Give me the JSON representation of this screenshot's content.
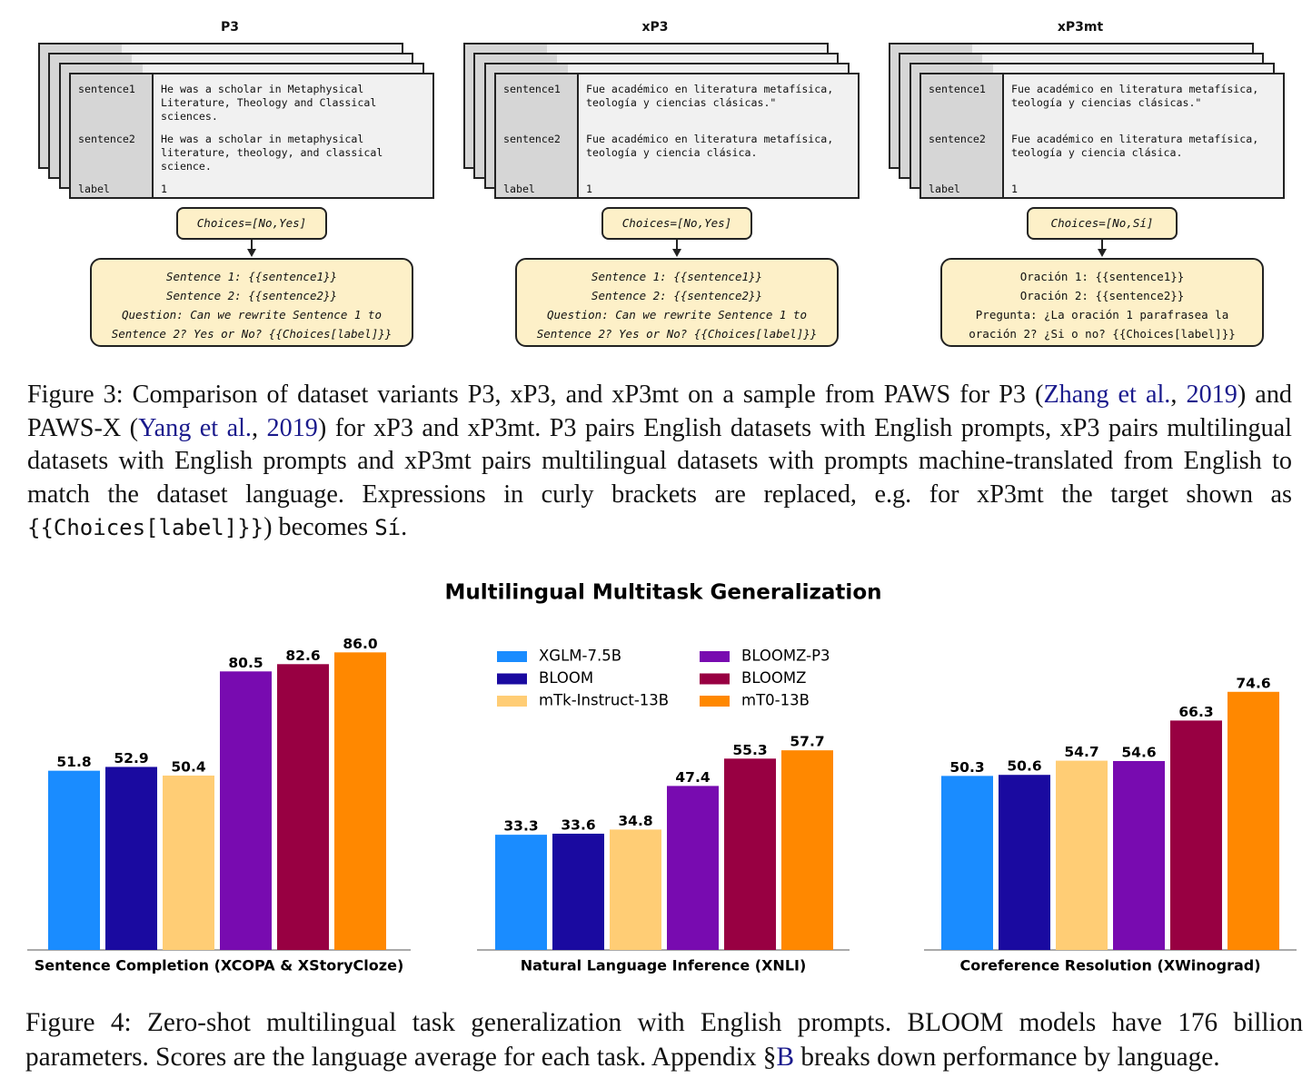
{
  "figure3": {
    "panels": [
      {
        "title": "P3",
        "fields": [
          {
            "key": "sentence1",
            "value": "He was a scholar in Metaphysical Literature, Theology and Classical sciences."
          },
          {
            "key": "sentence2",
            "value": "He was a scholar in metaphysical literature, theology, and classical science."
          },
          {
            "key": "label",
            "value": "1"
          }
        ],
        "choices": "Choices=[No,Yes]",
        "prompt": [
          "Sentence 1: {{sentence1}}",
          "Sentence 2: {{sentence2}}",
          "Question: Can we rewrite Sentence 1 to",
          "Sentence 2? Yes or No? {{Choices[label]}}"
        ]
      },
      {
        "title": "xP3",
        "fields": [
          {
            "key": "sentence1",
            "value": "Fue académico en literatura metafísica, teología y ciencias clásicas.\""
          },
          {
            "key": "sentence2",
            "value": "Fue académico en literatura metafísica, teología y ciencia clásica."
          },
          {
            "key": "label",
            "value": "1"
          }
        ],
        "choices": "Choices=[No,Yes]",
        "prompt": [
          "Sentence 1: {{sentence1}}",
          "Sentence 2: {{sentence2}}",
          "Question: Can we rewrite Sentence 1 to",
          "Sentence 2? Yes or No? {{Choices[label]}}"
        ]
      },
      {
        "title": "xP3mt",
        "fields": [
          {
            "key": "sentence1",
            "value": "Fue académico en literatura metafísica, teología y ciencias clásicas.\""
          },
          {
            "key": "sentence2",
            "value": "Fue académico en literatura metafísica, teología y ciencia clásica."
          },
          {
            "key": "label",
            "value": "1"
          }
        ],
        "choices": "Choices=[No,Sí]",
        "prompt": [
          "Oración 1: {{sentence1}}",
          "Oración 2: {{sentence2}}",
          "Pregunta: ¿La oración 1 parafrasea la",
          "oración 2? ¿Si o no? {{Choices[label]}}"
        ]
      }
    ],
    "caption": [
      "Figure 3: Comparison of dataset variants P3, xP3, and xP3mt on a sample from PAWS for P3 (",
      "Zhang et al.",
      ", ",
      "2019",
      ") and PAWS-X (",
      "Yang et al.",
      ", ",
      "2019",
      ") for xP3 and xP3mt. P3 pairs English datasets with English prompts, xP3 pairs multilingual datasets with English prompts and xP3mt pairs multilingual datasets with prompts machine-translated from English to match the dataset language. Expressions in curly brackets are replaced, e.g. for xP3mt the target shown as ",
      "{{Choices[label]}}",
      ") becomes ",
      "Sí",
      "."
    ]
  },
  "chart_data": {
    "type": "bar",
    "title": "Multilingual Multitask Generalization",
    "categories": [
      "Sentence Completion (XCOPA & XStoryCloze)",
      "Natural Language Inference (XNLI)",
      "Coreference Resolution (XWinograd)"
    ],
    "legend": "upper center",
    "series": [
      {
        "name": "XGLM-7.5B",
        "color": "#1a8cff",
        "values": [
          51.8,
          33.3,
          50.3
        ],
        "value_labels": [
          "51.8",
          "33.3",
          "50.3"
        ]
      },
      {
        "name": "BLOOM",
        "color": "#1a0aa0",
        "values": [
          52.9,
          33.6,
          50.6
        ],
        "value_labels": [
          "52.9",
          "33.6",
          "50.6"
        ]
      },
      {
        "name": "mTk-Instruct-13B",
        "color": "#ffcd75",
        "values": [
          50.4,
          34.8,
          54.7
        ],
        "value_labels": [
          "50.4",
          "34.8",
          "54.7"
        ]
      },
      {
        "name": "BLOOMZ-P3",
        "color": "#780bb0",
        "values": [
          80.5,
          47.4,
          54.6
        ],
        "value_labels": [
          "80.5",
          "47.4",
          "54.6"
        ]
      },
      {
        "name": "BLOOMZ",
        "color": "#980042",
        "values": [
          82.6,
          55.3,
          66.3
        ],
        "value_labels": [
          "82.6",
          "55.3",
          "66.3"
        ]
      },
      {
        "name": "mT0-13B",
        "color": "#ff8800",
        "values": [
          86,
          57.7,
          74.6
        ],
        "value_labels": [
          "86.0",
          "57.7",
          "74.6"
        ]
      }
    ]
  },
  "figure4": {
    "caption": [
      "Figure 4: Zero-shot multilingual task generalization with English prompts. BLOOM models have 176 billion parameters. Scores are the language average for each task. Appendix §",
      "B",
      " breaks down performance by language."
    ]
  }
}
